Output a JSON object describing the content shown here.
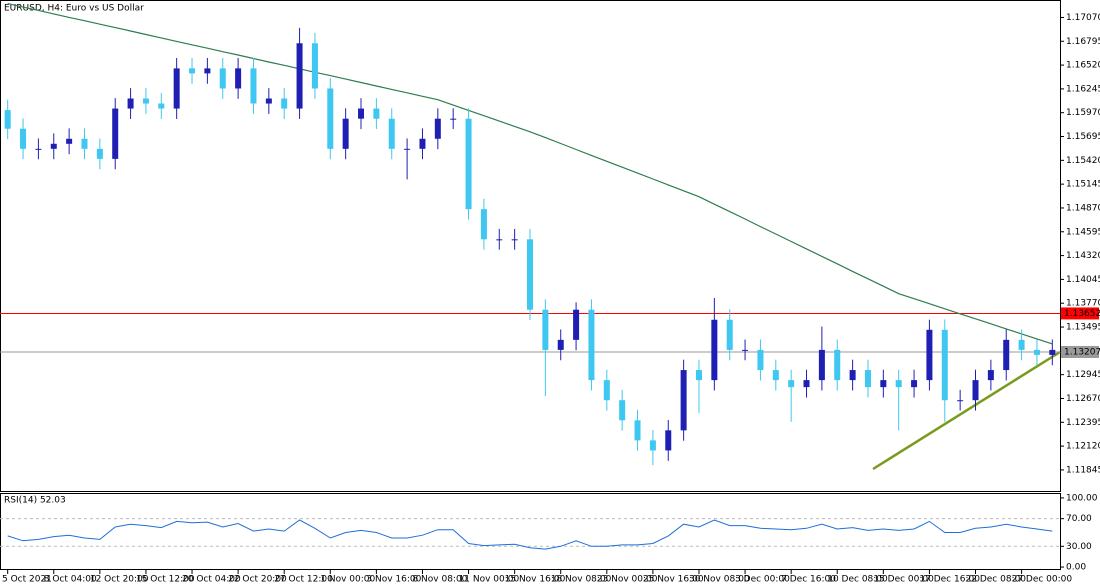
{
  "chart_data": [
    {
      "type": "candlestick",
      "title": "EURUSD, H4:  Euro vs US Dollar",
      "categories": [
        "5 Oct 2021",
        null,
        null,
        "8 Oct 04:00",
        null,
        null,
        "12 Oct 20:00",
        null,
        null,
        "15 Oct 12:00",
        null,
        null,
        "20 Oct 04:00",
        null,
        null,
        "22 Oct 20:00",
        null,
        null,
        "27 Oct 12:00",
        null,
        null,
        "1 Nov 00:00",
        null,
        null,
        "3 Nov 16:00",
        null,
        null,
        "8 Nov 08:00",
        null,
        null,
        "11 Nov 00:00",
        null,
        null,
        "15 Nov 16:00",
        null,
        null,
        "18 Nov 08:00",
        null,
        null,
        "23 Nov 00:00",
        null,
        null,
        "25 Nov 16:00",
        null,
        null,
        "30 Nov 08:00",
        null,
        null,
        "3 Dec 00:00",
        null,
        null,
        "7 Dec 16:00",
        null,
        null,
        "10 Dec 08:00",
        null,
        null,
        "15 Dec 00:00",
        null,
        null,
        "17 Dec 16:00",
        null,
        null,
        "22 Dec 08:00",
        null,
        null,
        "27 Dec 00:00",
        null,
        null
      ],
      "open": [
        1.16,
        1.15785,
        1.15553,
        1.15553,
        1.15611,
        1.15669,
        1.15553,
        1.15437,
        1.16018,
        1.16134,
        1.16076,
        1.16018,
        1.16482,
        1.16424,
        1.16482,
        1.1625,
        1.16482,
        1.16076,
        1.16134,
        1.16018,
        1.16772,
        1.1625,
        1.15553,
        1.15901,
        1.16018,
        1.15901,
        1.15553,
        1.15553,
        1.15669,
        1.15901,
        1.15901,
        1.14856,
        1.14508,
        1.14508,
        1.14508,
        1.13695,
        1.13231,
        1.13347,
        1.13695,
        1.12882,
        1.1265,
        1.12418,
        1.12186,
        1.1207,
        1.12302,
        1.12998,
        1.12882,
        1.13579,
        1.13231,
        1.13231,
        1.12998,
        1.12882,
        1.12801,
        1.12882,
        1.13231,
        1.12882,
        1.12998,
        1.12801,
        1.12882,
        1.12801,
        1.12882,
        1.13463,
        1.1265,
        1.1265,
        1.12882,
        1.12998,
        1.13347,
        1.13231,
        1.13173
      ],
      "high": [
        1.1612,
        1.15905,
        1.15673,
        1.15731,
        1.15789,
        1.15789,
        1.15673,
        1.16138,
        1.16254,
        1.16254,
        1.16196,
        1.16602,
        1.16602,
        1.16602,
        1.16602,
        1.16602,
        1.16602,
        1.16254,
        1.16254,
        1.1695,
        1.16892,
        1.1637,
        1.16021,
        1.16138,
        1.16138,
        1.16021,
        1.15673,
        1.15789,
        1.16021,
        1.16021,
        1.16021,
        1.14976,
        1.14628,
        1.14628,
        1.14628,
        1.13815,
        1.13467,
        1.1378,
        1.13815,
        1.13002,
        1.1277,
        1.12538,
        1.12306,
        1.12422,
        1.13118,
        1.13118,
        1.1383,
        1.13699,
        1.13351,
        1.13351,
        1.13118,
        1.13002,
        1.13002,
        1.135,
        1.13351,
        1.13118,
        1.13118,
        1.13002,
        1.13002,
        1.13002,
        1.1358,
        1.13583,
        1.1277,
        1.13002,
        1.13118,
        1.13467,
        1.13467,
        1.13351,
        1.13351
      ],
      "low": [
        1.15665,
        1.15433,
        1.15433,
        1.15433,
        1.15491,
        1.15433,
        1.15317,
        1.15317,
        1.15898,
        1.15956,
        1.15898,
        1.15898,
        1.16304,
        1.16304,
        1.1613,
        1.1613,
        1.15956,
        1.15956,
        1.15898,
        1.15898,
        1.1613,
        1.15433,
        1.15433,
        1.15781,
        1.15781,
        1.15433,
        1.152,
        1.15433,
        1.15549,
        1.15781,
        1.14736,
        1.14388,
        1.14388,
        1.14388,
        1.13575,
        1.127,
        1.13111,
        1.13227,
        1.12762,
        1.1253,
        1.12298,
        1.12066,
        1.119,
        1.1195,
        1.12182,
        1.125,
        1.12762,
        1.13111,
        1.13111,
        1.12878,
        1.12762,
        1.124,
        1.12681,
        1.12762,
        1.12762,
        1.12762,
        1.12681,
        1.12681,
        1.123,
        1.12681,
        1.12762,
        1.124,
        1.1253,
        1.1253,
        1.12762,
        1.12878,
        1.13111,
        1.13053,
        1.13053
      ],
      "close": [
        1.15785,
        1.15553,
        1.15553,
        1.15611,
        1.15669,
        1.15553,
        1.15437,
        1.16018,
        1.16134,
        1.16076,
        1.16018,
        1.16482,
        1.16424,
        1.16482,
        1.1625,
        1.16482,
        1.16076,
        1.16134,
        1.16018,
        1.16772,
        1.1625,
        1.15553,
        1.15901,
        1.16018,
        1.15901,
        1.15553,
        1.15553,
        1.15669,
        1.15901,
        1.15901,
        1.14856,
        1.14508,
        1.14508,
        1.14508,
        1.13695,
        1.13231,
        1.13347,
        1.13695,
        1.12882,
        1.1265,
        1.12418,
        1.12186,
        1.1207,
        1.12302,
        1.12998,
        1.12882,
        1.13579,
        1.13231,
        1.13231,
        1.12998,
        1.12882,
        1.12801,
        1.12882,
        1.13231,
        1.12882,
        1.12998,
        1.12801,
        1.12882,
        1.12801,
        1.12882,
        1.13463,
        1.1265,
        1.1265,
        1.12882,
        1.12998,
        1.13347,
        1.13231,
        1.13173,
        1.13231
      ],
      "up_color": "#1f1fb4",
      "down_color": "#3ec7f0",
      "series": [
        {
          "color": "#2e7d4f",
          "values": [
            1.1723,
            1.1719,
            1.17151,
            1.17111,
            1.17071,
            1.17032,
            1.16992,
            1.16953,
            1.16913,
            1.16873,
            1.16834,
            1.16794,
            1.16754,
            1.16715,
            1.16675,
            1.16636,
            1.16596,
            1.16556,
            1.16517,
            1.16477,
            1.16437,
            1.16398,
            1.16358,
            1.16319,
            1.16279,
            1.16239,
            1.162,
            1.1616,
            1.1612,
            1.16058,
            1.15997,
            1.15935,
            1.15873,
            1.15812,
            1.1575,
            1.15682,
            1.15614,
            1.15545,
            1.15477,
            1.15409,
            1.15341,
            1.15273,
            1.15205,
            1.15136,
            1.15068,
            1.15,
            1.14914,
            1.14828,
            1.14742,
            1.14655,
            1.14569,
            1.14483,
            1.14397,
            1.14311,
            1.14225,
            1.14138,
            1.14052,
            1.13966,
            1.1388,
            1.13822,
            1.13764,
            1.13706,
            1.13648,
            1.1359,
            1.13532,
            1.13474,
            1.13416,
            1.13358,
            1.133
          ]
        }
      ],
      "price_lines": [
        {
          "value": 1.13652,
          "label": "1.13652",
          "color": "#ff0000"
        },
        {
          "value": 1.13207,
          "label": "1.13207",
          "color": "#9a9a9a"
        }
      ],
      "ylim": [
        1.1159,
        1.1726
      ],
      "yticks": [
        {
          "value": 1.1707,
          "label": "1.17070"
        },
        {
          "value": 1.16795,
          "label": "1.16795"
        },
        {
          "value": 1.1652,
          "label": "1.16520"
        },
        {
          "value": 1.16245,
          "label": "1.16245"
        },
        {
          "value": 1.1597,
          "label": "1.15970"
        },
        {
          "value": 1.15695,
          "label": "1.15695"
        },
        {
          "value": 1.1542,
          "label": "1.15420"
        },
        {
          "value": 1.15145,
          "label": "1.15145"
        },
        {
          "value": 1.1487,
          "label": "1.14870"
        },
        {
          "value": 1.14595,
          "label": "1.14595"
        },
        {
          "value": 1.1432,
          "label": "1.14320"
        },
        {
          "value": 1.14045,
          "label": "1.14045"
        },
        {
          "value": 1.1377,
          "label": "1.13770"
        },
        {
          "value": 1.13495,
          "label": "1.13495"
        },
        {
          "value": 1.12945,
          "label": "1.12945"
        },
        {
          "value": 1.1267,
          "label": "1.12670"
        },
        {
          "value": 1.12395,
          "label": "1.12395"
        },
        {
          "value": 1.1212,
          "label": "1.12120"
        },
        {
          "value": 1.11845,
          "label": "1.11845"
        }
      ]
    },
    {
      "type": "line",
      "title": "RSI(14) 52.03",
      "color": "#1e6fd9",
      "values": [
        45,
        38,
        40,
        44,
        46,
        42,
        40,
        58,
        62,
        60,
        57,
        66,
        64,
        65,
        58,
        63,
        52,
        55,
        52,
        68,
        56,
        42,
        50,
        53,
        50,
        42,
        42,
        46,
        54,
        54,
        34,
        31,
        32,
        33,
        28,
        26,
        30,
        38,
        30,
        30,
        32,
        32,
        34,
        45,
        62,
        58,
        68,
        60,
        60,
        56,
        55,
        54,
        56,
        62,
        55,
        57,
        53,
        55,
        53,
        55,
        66,
        50,
        50,
        56,
        58,
        62,
        58,
        55,
        52.03
      ],
      "ylim": [
        -4.3,
        105.7
      ],
      "yticks": [
        {
          "value": 100,
          "label": "100.00"
        },
        {
          "value": 70,
          "label": "70.00"
        },
        {
          "value": 30,
          "label": "30.00"
        },
        {
          "value": 0,
          "label": "0.00"
        }
      ],
      "levels": [
        70,
        30
      ]
    }
  ]
}
